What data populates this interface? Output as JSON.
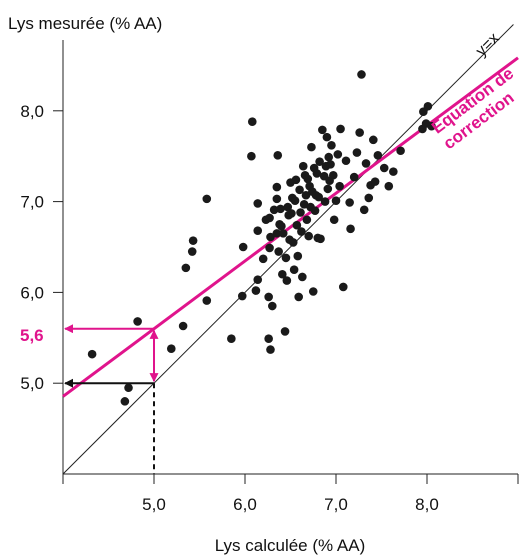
{
  "chart_data": {
    "type": "scatter",
    "xlabel": "Lys calculée (% AA)",
    "ylabel": "Lys mesurée (% AA)",
    "xlim": [
      4.0,
      9.0
    ],
    "ylim": [
      4.0,
      9.0
    ],
    "x_ticks": [
      {
        "value": 4.0,
        "label": ""
      },
      {
        "value": 5.0,
        "label": "5,0"
      },
      {
        "value": 6.0,
        "label": "6,0"
      },
      {
        "value": 7.0,
        "label": "7,0"
      },
      {
        "value": 8.0,
        "label": "8,0"
      },
      {
        "value": 9.0,
        "label": ""
      }
    ],
    "y_ticks": [
      {
        "value": 5.0,
        "label": "5,0"
      },
      {
        "value": 6.0,
        "label": "6,0"
      },
      {
        "value": 7.0,
        "label": "7,0"
      },
      {
        "value": 8.0,
        "label": "8,0"
      }
    ],
    "grid": false,
    "identity_line": {
      "label": "y=x"
    },
    "correction_line": {
      "label_line1": "Equation de",
      "label_line2": "correction",
      "intercept": 1.87,
      "slope": 0.746,
      "color": "#e0148c"
    },
    "highlight": {
      "x_value": 5.0,
      "y_on_identity": 5.0,
      "y_corrected": 5.6,
      "corrected_label": "5,6",
      "color": "#e0148c"
    },
    "points_color": "#1a1a1a",
    "points": [
      [
        4.32,
        5.32
      ],
      [
        4.68,
        4.8
      ],
      [
        4.72,
        4.95
      ],
      [
        4.82,
        5.68
      ],
      [
        5.19,
        5.38
      ],
      [
        5.32,
        5.63
      ],
      [
        5.35,
        6.27
      ],
      [
        5.42,
        6.45
      ],
      [
        5.43,
        6.57
      ],
      [
        5.58,
        5.91
      ],
      [
        5.58,
        7.03
      ],
      [
        5.85,
        5.49
      ],
      [
        5.97,
        5.96
      ],
      [
        5.98,
        6.5
      ],
      [
        6.07,
        7.5
      ],
      [
        6.08,
        7.88
      ],
      [
        6.12,
        6.02
      ],
      [
        6.14,
        6.14
      ],
      [
        6.14,
        6.68
      ],
      [
        6.14,
        6.98
      ],
      [
        6.2,
        6.37
      ],
      [
        6.23,
        6.8
      ],
      [
        6.26,
        5.49
      ],
      [
        6.26,
        5.95
      ],
      [
        6.27,
        6.49
      ],
      [
        6.27,
        6.82
      ],
      [
        6.28,
        6.61
      ],
      [
        6.28,
        5.37
      ],
      [
        6.3,
        5.85
      ],
      [
        6.32,
        6.91
      ],
      [
        6.35,
        6.65
      ],
      [
        6.35,
        7.03
      ],
      [
        6.35,
        7.16
      ],
      [
        6.36,
        7.51
      ],
      [
        6.37,
        6.45
      ],
      [
        6.38,
        6.75
      ],
      [
        6.39,
        6.92
      ],
      [
        6.4,
        6.73
      ],
      [
        6.41,
        6.2
      ],
      [
        6.42,
        6.65
      ],
      [
        6.44,
        5.57
      ],
      [
        6.45,
        6.38
      ],
      [
        6.46,
        6.13
      ],
      [
        6.47,
        6.94
      ],
      [
        6.48,
        6.85
      ],
      [
        6.49,
        6.58
      ],
      [
        6.5,
        7.21
      ],
      [
        6.51,
        6.87
      ],
      [
        6.52,
        7.04
      ],
      [
        6.53,
        6.55
      ],
      [
        6.54,
        6.25
      ],
      [
        6.55,
        7.01
      ],
      [
        6.56,
        7.24
      ],
      [
        6.57,
        6.74
      ],
      [
        6.58,
        6.4
      ],
      [
        6.59,
        5.95
      ],
      [
        6.6,
        7.13
      ],
      [
        6.61,
        6.88
      ],
      [
        6.62,
        6.67
      ],
      [
        6.63,
        6.17
      ],
      [
        6.64,
        7.39
      ],
      [
        6.65,
        6.97
      ],
      [
        6.66,
        7.29
      ],
      [
        6.67,
        7.07
      ],
      [
        6.68,
        6.8
      ],
      [
        6.69,
        7.25
      ],
      [
        6.7,
        6.62
      ],
      [
        6.71,
        7.17
      ],
      [
        6.72,
        6.94
      ],
      [
        6.73,
        7.6
      ],
      [
        6.74,
        7.11
      ],
      [
        6.75,
        6.01
      ],
      [
        6.76,
        7.37
      ],
      [
        6.77,
        6.9
      ],
      [
        6.78,
        7.07
      ],
      [
        6.79,
        7.31
      ],
      [
        6.8,
        6.6
      ],
      [
        6.81,
        7.05
      ],
      [
        6.82,
        7.44
      ],
      [
        6.83,
        6.59
      ],
      [
        6.85,
        7.79
      ],
      [
        6.87,
        7.28
      ],
      [
        6.88,
        7.0
      ],
      [
        6.89,
        7.39
      ],
      [
        6.9,
        7.71
      ],
      [
        6.91,
        7.14
      ],
      [
        6.92,
        7.49
      ],
      [
        6.93,
        7.23
      ],
      [
        6.94,
        7.41
      ],
      [
        6.95,
        7.62
      ],
      [
        6.97,
        7.29
      ],
      [
        6.98,
        6.8
      ],
      [
        7.0,
        7.01
      ],
      [
        7.02,
        7.52
      ],
      [
        7.04,
        7.17
      ],
      [
        7.05,
        7.8
      ],
      [
        7.08,
        6.06
      ],
      [
        7.11,
        7.45
      ],
      [
        7.16,
        6.7
      ],
      [
        7.2,
        7.27
      ],
      [
        7.23,
        7.54
      ],
      [
        7.26,
        7.76
      ],
      [
        7.28,
        8.4
      ],
      [
        7.31,
        6.91
      ],
      [
        7.33,
        7.42
      ],
      [
        7.36,
        7.04
      ],
      [
        7.38,
        7.18
      ],
      [
        7.41,
        7.68
      ],
      [
        7.43,
        7.22
      ],
      [
        7.46,
        7.51
      ],
      [
        7.53,
        7.37
      ],
      [
        7.58,
        7.17
      ],
      [
        7.63,
        7.33
      ],
      [
        7.71,
        7.56
      ],
      [
        7.95,
        7.8
      ],
      [
        7.96,
        7.99
      ],
      [
        8.01,
        8.05
      ],
      [
        8.05,
        7.83
      ],
      [
        7.99,
        7.86
      ],
      [
        7.15,
        6.99
      ]
    ]
  }
}
